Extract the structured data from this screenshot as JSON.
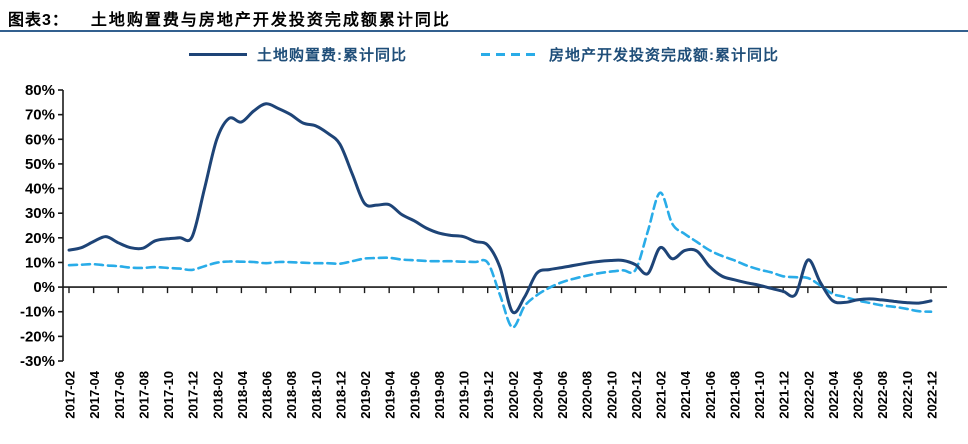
{
  "header": {
    "tag": "图表3：",
    "title": "土地购置费与房地产开发投资完成额累计同比"
  },
  "legend": [
    {
      "label": "土地购置费:累计同比",
      "color": "#1e4477",
      "style": "solid"
    },
    {
      "label": "房地产开发投资完成额:累计同比",
      "color": "#29ace8",
      "style": "dashed"
    }
  ],
  "colors": {
    "land_line": "#1e4477",
    "investment_line": "#29ace8",
    "title_rule": "#33608f",
    "axis": "#1a1a1a",
    "text": "#000000"
  },
  "chart_data": {
    "type": "line",
    "title": "土地购置费与房地产开发投资完成额累计同比",
    "xlabel": "",
    "ylabel": "",
    "ylim": [
      -30,
      80
    ],
    "y_ticks": [
      80,
      70,
      60,
      50,
      40,
      30,
      20,
      10,
      0,
      -10,
      -20,
      -30
    ],
    "y_tick_suffix": "%",
    "grid": false,
    "legend_position": "top-center",
    "categories": [
      "2017-02",
      "2017-03",
      "2017-04",
      "2017-05",
      "2017-06",
      "2017-07",
      "2017-08",
      "2017-09",
      "2017-10",
      "2017-11",
      "2017-12",
      "2018-01",
      "2018-02",
      "2018-03",
      "2018-04",
      "2018-05",
      "2018-06",
      "2018-07",
      "2018-08",
      "2018-09",
      "2018-10",
      "2018-11",
      "2018-12",
      "2019-01",
      "2019-02",
      "2019-03",
      "2019-04",
      "2019-05",
      "2019-06",
      "2019-07",
      "2019-08",
      "2019-09",
      "2019-10",
      "2019-11",
      "2019-12",
      "2020-01",
      "2020-02",
      "2020-03",
      "2020-04",
      "2020-05",
      "2020-06",
      "2020-07",
      "2020-08",
      "2020-09",
      "2020-10",
      "2020-11",
      "2020-12",
      "2021-01",
      "2021-02",
      "2021-03",
      "2021-04",
      "2021-05",
      "2021-06",
      "2021-07",
      "2021-08",
      "2021-09",
      "2021-10",
      "2021-11",
      "2021-12",
      "2022-01",
      "2022-02",
      "2022-03",
      "2022-04",
      "2022-05",
      "2022-06",
      "2022-07",
      "2022-08",
      "2022-09",
      "2022-10",
      "2022-11",
      "2022-12"
    ],
    "x_tick_labels": [
      "2017-02",
      "2017-04",
      "2017-06",
      "2017-08",
      "2017-10",
      "2017-12",
      "2018-02",
      "2018-04",
      "2018-06",
      "2018-08",
      "2018-10",
      "2018-12",
      "2019-02",
      "2019-04",
      "2019-06",
      "2019-08",
      "2019-10",
      "2019-12",
      "2020-02",
      "2020-04",
      "2020-06",
      "2020-08",
      "2020-10",
      "2020-12",
      "2021-02",
      "2021-04",
      "2021-06",
      "2021-08",
      "2021-10",
      "2021-12",
      "2022-02",
      "2022-04",
      "2022-06",
      "2022-08",
      "2022-10",
      "2022-12"
    ],
    "series": [
      {
        "name": "土地购置费:累计同比",
        "style": "solid",
        "color": "#1e4477",
        "values": [
          15.0,
          16.0,
          18.5,
          20.5,
          18.0,
          16.0,
          15.8,
          18.8,
          19.6,
          20.0,
          20.4,
          40.0,
          60.0,
          68.5,
          67.0,
          71.5,
          74.4,
          72.5,
          70.0,
          66.6,
          65.5,
          62.5,
          58.0,
          46.0,
          34.0,
          33.3,
          33.5,
          29.5,
          27.0,
          24.0,
          22.0,
          21.0,
          20.5,
          18.5,
          17.0,
          8.0,
          -10.0,
          -4.0,
          5.7,
          7.1,
          7.9,
          8.8,
          9.7,
          10.4,
          10.8,
          10.8,
          9.1,
          5.5,
          16.0,
          11.5,
          14.8,
          14.6,
          8.5,
          4.5,
          3.0,
          1.8,
          0.8,
          -0.5,
          -1.7,
          -3.0,
          11.0,
          2.0,
          -5.5,
          -6.2,
          -5.2,
          -4.8,
          -5.2,
          -5.8,
          -6.3,
          -6.5,
          -5.6
        ]
      },
      {
        "name": "房地产开发投资完成额:累计同比",
        "style": "dashed",
        "color": "#29ace8",
        "values": [
          8.9,
          9.1,
          9.3,
          8.8,
          8.5,
          7.9,
          7.8,
          8.1,
          7.8,
          7.5,
          7.0,
          8.5,
          9.9,
          10.4,
          10.3,
          10.2,
          9.7,
          10.2,
          10.1,
          9.9,
          9.7,
          9.7,
          9.5,
          10.5,
          11.6,
          11.8,
          11.9,
          11.2,
          10.9,
          10.6,
          10.5,
          10.5,
          10.3,
          10.2,
          9.9,
          -3.2,
          -16.3,
          -7.7,
          -3.3,
          -0.3,
          1.9,
          3.4,
          4.6,
          5.6,
          6.3,
          6.8,
          7.0,
          22.6,
          38.3,
          25.6,
          21.6,
          18.3,
          15.0,
          12.7,
          10.9,
          8.8,
          7.2,
          6.0,
          4.4,
          4.0,
          3.7,
          0.7,
          -2.7,
          -4.0,
          -5.4,
          -6.4,
          -7.4,
          -8.0,
          -8.8,
          -9.8,
          -10.0
        ]
      }
    ]
  }
}
